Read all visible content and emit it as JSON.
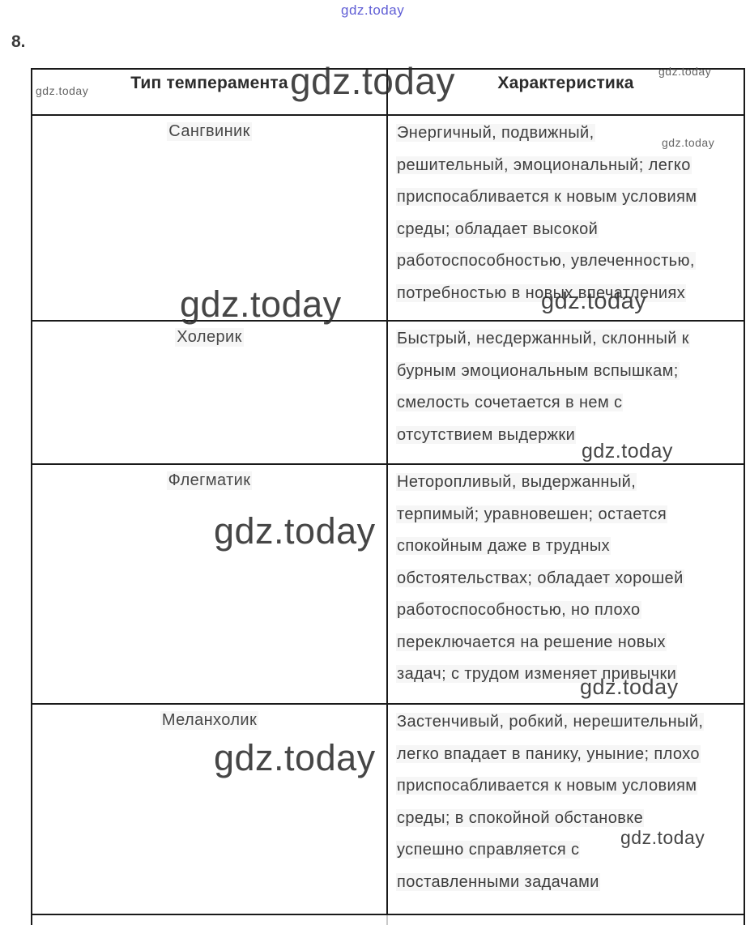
{
  "question_number": "8.",
  "watermark": {
    "text": "gdz.today",
    "top_color": "#4543ce",
    "dark_color": "#2d2d2d",
    "gray_color": "#666666"
  },
  "colors": {
    "table_border": "#1a1a1a",
    "body_text": "#3e3e3e",
    "header_text": "#2b2b2b"
  },
  "table": {
    "headers": [
      "Тип темперамента",
      "Характеристика"
    ],
    "rows": [
      {
        "type": "Сангвиник",
        "lines": [
          "Энергичный, подвижный,",
          "решительный, эмоциональный; легко",
          "приспосабливается к новым условиям",
          "среды; обладает высокой",
          "работоспособностью, увлеченностью,",
          "потребностью в новых впечатлениях"
        ]
      },
      {
        "type": "Холерик",
        "lines": [
          "Быстрый, несдержанный, склонный к",
          "бурным эмоциональным вспышкам;",
          "смелость сочетается в нем с",
          "отсутствием выдержки"
        ]
      },
      {
        "type": "Флегматик",
        "lines": [
          "Неторопливый, выдержанный,",
          "терпимый; уравновешен; остается",
          "спокойным даже в трудных",
          "обстоятельствах; обладает хорошей",
          "работоспособностью, но плохо",
          "переключается на решение новых",
          "задач; с трудом изменяет привычки"
        ]
      },
      {
        "type": "Меланхолик",
        "lines": [
          "Застенчивый, робкий, нерешительный,",
          "легко впадает в панику, уныние; плохо",
          "приспосабливается к новым условиям",
          "среды; в спокойной обстановке",
          "успешно справляется с",
          "поставленными задачами"
        ]
      }
    ]
  }
}
